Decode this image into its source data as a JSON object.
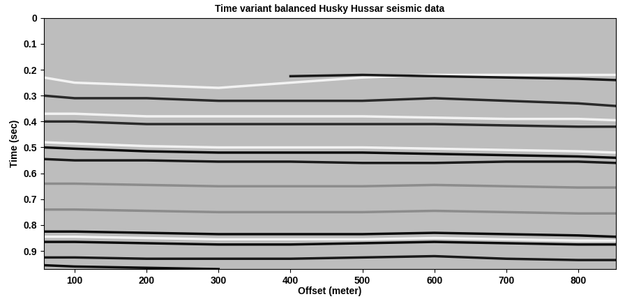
{
  "chart_data": {
    "type": "line",
    "title": "Time variant balanced Husky Hussar seismic data",
    "x_label": "Offset (meter)",
    "y_label": "Time (sec)",
    "x": [
      57,
      100,
      200,
      300,
      400,
      500,
      600,
      700,
      800,
      852
    ],
    "series": [
      {
        "color": "#f2f2f2",
        "values": [
          0.23,
          0.25,
          0.26,
          0.27,
          0.25,
          0.23,
          0.22,
          0.22,
          0.22,
          0.22
        ]
      },
      {
        "color": "#1a1a1a",
        "values": [
          null,
          null,
          null,
          null,
          0.225,
          0.22,
          0.225,
          0.23,
          0.235,
          0.24
        ]
      },
      {
        "color": "#2a2a2a",
        "values": [
          0.3,
          0.31,
          0.31,
          0.32,
          0.32,
          0.32,
          0.31,
          0.32,
          0.33,
          0.34
        ]
      },
      {
        "color": "#f2f2f2",
        "values": [
          0.37,
          0.37,
          0.38,
          0.38,
          0.38,
          0.38,
          0.385,
          0.39,
          0.39,
          0.395
        ]
      },
      {
        "color": "#2a2a2a",
        "values": [
          0.4,
          0.4,
          0.41,
          0.41,
          0.41,
          0.41,
          0.41,
          0.415,
          0.42,
          0.42
        ]
      },
      {
        "color": "#f2f2f2",
        "values": [
          0.48,
          0.485,
          0.495,
          0.5,
          0.5,
          0.5,
          0.505,
          0.51,
          0.515,
          0.52
        ]
      },
      {
        "color": "#0d0d0d",
        "values": [
          0.5,
          0.505,
          0.515,
          0.52,
          0.52,
          0.52,
          0.525,
          0.53,
          0.535,
          0.54
        ]
      },
      {
        "color": "#1a1a1a",
        "values": [
          0.545,
          0.55,
          0.55,
          0.555,
          0.555,
          0.56,
          0.56,
          0.555,
          0.555,
          0.56
        ]
      },
      {
        "color": "#8c8c8c",
        "values": [
          0.64,
          0.64,
          0.645,
          0.65,
          0.65,
          0.65,
          0.645,
          0.65,
          0.655,
          0.655
        ]
      },
      {
        "color": "#8c8c8c",
        "values": [
          0.74,
          0.74,
          0.745,
          0.75,
          0.75,
          0.75,
          0.745,
          0.75,
          0.755,
          0.755
        ]
      },
      {
        "color": "#0d0d0d",
        "values": [
          0.825,
          0.825,
          0.83,
          0.835,
          0.835,
          0.835,
          0.83,
          0.835,
          0.84,
          0.845
        ]
      },
      {
        "color": "#f2f2f2",
        "values": [
          0.845,
          0.845,
          0.85,
          0.855,
          0.855,
          0.855,
          0.85,
          0.855,
          0.86,
          0.86
        ]
      },
      {
        "color": "#0d0d0d",
        "values": [
          0.865,
          0.865,
          0.87,
          0.875,
          0.875,
          0.87,
          0.865,
          0.87,
          0.875,
          0.875
        ]
      },
      {
        "color": "#1a1a1a",
        "values": [
          0.925,
          0.925,
          0.93,
          0.93,
          0.93,
          0.925,
          0.92,
          0.93,
          0.935,
          0.935
        ]
      },
      {
        "color": "#0d0d0d",
        "values": [
          0.955,
          0.96,
          0.965,
          0.97,
          null,
          null,
          null,
          null,
          null,
          null
        ]
      }
    ],
    "xlim": [
      57,
      852
    ],
    "ylim": [
      0.97,
      0
    ],
    "xticks": [
      100,
      200,
      300,
      400,
      500,
      600,
      700,
      800
    ],
    "yticks": [
      0,
      0.1,
      0.2,
      0.3,
      0.4,
      0.5,
      0.6,
      0.7,
      0.8,
      0.9
    ],
    "grid": false
  }
}
